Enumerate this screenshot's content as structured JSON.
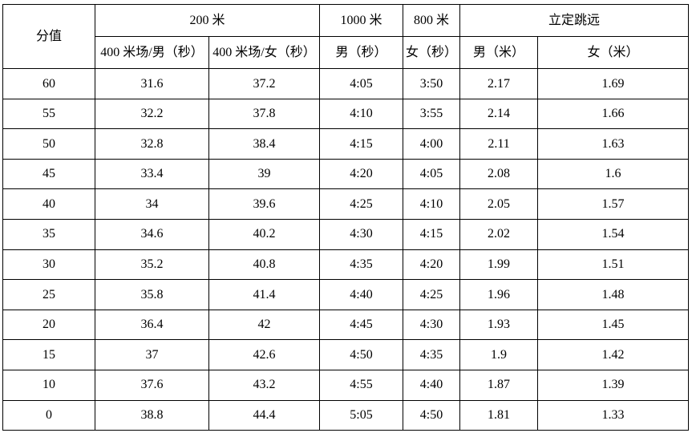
{
  "table": {
    "colors": {
      "border": "#000000",
      "background": "#ffffff",
      "text": "#000000"
    },
    "header": {
      "score_label": "分值",
      "groups": [
        {
          "label": "200 米",
          "colspan": 2
        },
        {
          "label": "1000 米",
          "colspan": 1
        },
        {
          "label": "800 米",
          "colspan": 1
        },
        {
          "label": "立定跳远",
          "colspan": 2
        }
      ],
      "subheaders": [
        "400 米场/男（秒）",
        "400 米场/女（秒）",
        "男（秒）",
        "女（秒）",
        "男（米）",
        "女（米）"
      ]
    },
    "rows": [
      [
        "60",
        "31.6",
        "37.2",
        "4:05",
        "3:50",
        "2.17",
        "1.69"
      ],
      [
        "55",
        "32.2",
        "37.8",
        "4:10",
        "3:55",
        "2.14",
        "1.66"
      ],
      [
        "50",
        "32.8",
        "38.4",
        "4:15",
        "4:00",
        "2.11",
        "1.63"
      ],
      [
        "45",
        "33.4",
        "39",
        "4:20",
        "4:05",
        "2.08",
        "1.6"
      ],
      [
        "40",
        "34",
        "39.6",
        "4:25",
        "4:10",
        "2.05",
        "1.57"
      ],
      [
        "35",
        "34.6",
        "40.2",
        "4:30",
        "4:15",
        "2.02",
        "1.54"
      ],
      [
        "30",
        "35.2",
        "40.8",
        "4:35",
        "4:20",
        "1.99",
        "1.51"
      ],
      [
        "25",
        "35.8",
        "41.4",
        "4:40",
        "4:25",
        "1.96",
        "1.48"
      ],
      [
        "20",
        "36.4",
        "42",
        "4:45",
        "4:30",
        "1.93",
        "1.45"
      ],
      [
        "15",
        "37",
        "42.6",
        "4:50",
        "4:35",
        "1.9",
        "1.42"
      ],
      [
        "10",
        "37.6",
        "43.2",
        "4:55",
        "4:40",
        "1.87",
        "1.39"
      ],
      [
        "0",
        "38.8",
        "44.4",
        "5:05",
        "4:50",
        "1.81",
        "1.33"
      ]
    ]
  }
}
